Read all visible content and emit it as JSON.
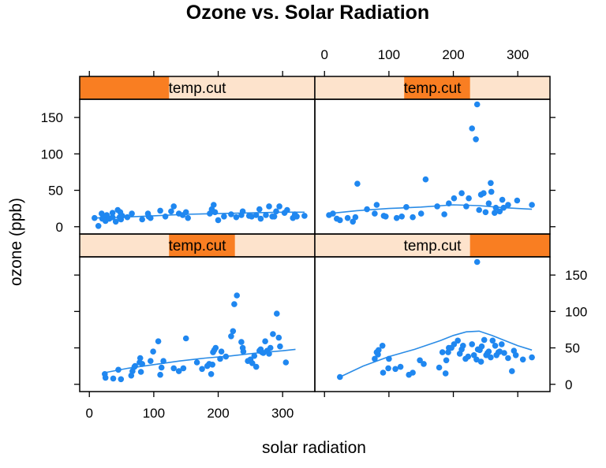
{
  "chart_data": {
    "type": "scatter",
    "title": "Ozone vs. Solar Radiation",
    "xlabel": "solar radiation",
    "ylabel": "ozone (ppb)",
    "xlim": [
      -15,
      350
    ],
    "ylim": [
      -10,
      175
    ],
    "x_ticks": [
      0,
      100,
      200,
      300
    ],
    "y_ticks": [
      0,
      50,
      100,
      150
    ],
    "strip_label": "temp.cut",
    "colors": {
      "points": "#1f87f0",
      "smooth_line": "#2b8ce6",
      "strip_background": "#fde3cc",
      "strip_fill": "#f97e22",
      "frame": "#000000"
    },
    "panels": [
      {
        "id": "bottom-left",
        "strip_range": [
          0.38,
          0.66
        ],
        "points": [
          [
            24,
            14
          ],
          [
            25,
            9
          ],
          [
            37,
            8
          ],
          [
            45,
            20
          ],
          [
            49,
            7
          ],
          [
            65,
            12
          ],
          [
            67,
            18
          ],
          [
            70,
            24
          ],
          [
            71,
            25
          ],
          [
            78,
            30
          ],
          [
            79,
            36
          ],
          [
            80,
            17
          ],
          [
            82,
            28
          ],
          [
            95,
            32
          ],
          [
            99,
            45
          ],
          [
            107,
            59
          ],
          [
            110,
            13
          ],
          [
            112,
            23
          ],
          [
            115,
            32
          ],
          [
            131,
            22
          ],
          [
            139,
            18
          ],
          [
            146,
            22
          ],
          [
            150,
            63
          ],
          [
            167,
            30
          ],
          [
            175,
            21
          ],
          [
            183,
            25
          ],
          [
            186,
            28
          ],
          [
            189,
            14
          ],
          [
            191,
            27
          ],
          [
            192,
            44
          ],
          [
            194,
            47
          ],
          [
            196,
            50
          ],
          [
            203,
            35
          ],
          [
            205,
            45
          ],
          [
            212,
            38
          ],
          [
            220,
            66
          ],
          [
            223,
            73
          ],
          [
            225,
            110
          ],
          [
            229,
            122
          ],
          [
            236,
            58
          ],
          [
            238,
            50
          ],
          [
            239,
            45
          ],
          [
            246,
            32
          ],
          [
            250,
            34
          ],
          [
            253,
            29
          ],
          [
            256,
            39
          ],
          [
            259,
            24
          ],
          [
            264,
            46
          ],
          [
            266,
            48
          ],
          [
            268,
            44
          ],
          [
            270,
            43
          ],
          [
            273,
            59
          ],
          [
            276,
            46
          ],
          [
            279,
            42
          ],
          [
            281,
            50
          ],
          [
            285,
            69
          ],
          [
            291,
            97
          ],
          [
            294,
            64
          ],
          [
            296,
            52
          ],
          [
            305,
            30
          ]
        ],
        "smooth": [
          [
            24,
            16
          ],
          [
            60,
            22
          ],
          [
            100,
            27
          ],
          [
            140,
            32
          ],
          [
            180,
            36
          ],
          [
            220,
            39
          ],
          [
            260,
            43
          ],
          [
            300,
            46
          ],
          [
            320,
            48
          ]
        ]
      },
      {
        "id": "bottom-right",
        "strip_range": [
          0.66,
          1.0
        ],
        "points": [
          [
            24,
            10
          ],
          [
            78,
            35
          ],
          [
            81,
            44
          ],
          [
            83,
            41
          ],
          [
            84,
            47
          ],
          [
            90,
            53
          ],
          [
            91,
            16
          ],
          [
            99,
            22
          ],
          [
            100,
            35
          ],
          [
            110,
            21
          ],
          [
            118,
            24
          ],
          [
            131,
            13
          ],
          [
            137,
            16
          ],
          [
            148,
            33
          ],
          [
            154,
            28
          ],
          [
            178,
            23
          ],
          [
            183,
            44
          ],
          [
            188,
            15
          ],
          [
            189,
            33
          ],
          [
            192,
            44
          ],
          [
            193,
            50
          ],
          [
            197,
            50
          ],
          [
            201,
            55
          ],
          [
            207,
            60
          ],
          [
            210,
            42
          ],
          [
            213,
            48
          ],
          [
            215,
            53
          ],
          [
            219,
            35
          ],
          [
            223,
            38
          ],
          [
            229,
            55
          ],
          [
            232,
            40
          ],
          [
            236,
            34
          ],
          [
            237,
            168
          ],
          [
            238,
            48
          ],
          [
            241,
            47
          ],
          [
            243,
            31
          ],
          [
            244,
            52
          ],
          [
            248,
            61
          ],
          [
            251,
            40
          ],
          [
            253,
            43
          ],
          [
            255,
            45
          ],
          [
            258,
            37
          ],
          [
            261,
            60
          ],
          [
            265,
            53
          ],
          [
            267,
            40
          ],
          [
            270,
            44
          ],
          [
            272,
            45
          ],
          [
            275,
            55
          ],
          [
            279,
            43
          ],
          [
            285,
            36
          ],
          [
            291,
            18
          ],
          [
            294,
            46
          ],
          [
            297,
            40
          ],
          [
            308,
            34
          ],
          [
            322,
            37
          ]
        ],
        "smooth": [
          [
            24,
            10
          ],
          [
            60,
            25
          ],
          [
            100,
            38
          ],
          [
            140,
            48
          ],
          [
            180,
            60
          ],
          [
            200,
            67
          ],
          [
            220,
            72
          ],
          [
            240,
            73
          ],
          [
            260,
            67
          ],
          [
            280,
            60
          ],
          [
            300,
            53
          ],
          [
            322,
            47
          ]
        ]
      },
      {
        "id": "top-left",
        "strip_range": [
          0.0,
          0.38
        ],
        "points": [
          [
            8,
            12
          ],
          [
            14,
            1
          ],
          [
            19,
            18
          ],
          [
            20,
            11
          ],
          [
            24,
            14
          ],
          [
            25,
            8
          ],
          [
            27,
            16
          ],
          [
            31,
            11
          ],
          [
            36,
            13
          ],
          [
            36,
            19
          ],
          [
            41,
            7
          ],
          [
            44,
            23
          ],
          [
            47,
            13
          ],
          [
            48,
            20
          ],
          [
            49,
            10
          ],
          [
            51,
            15
          ],
          [
            59,
            13
          ],
          [
            66,
            18
          ],
          [
            82,
            10
          ],
          [
            91,
            18
          ],
          [
            92,
            14
          ],
          [
            95,
            12
          ],
          [
            110,
            22
          ],
          [
            118,
            14
          ],
          [
            127,
            21
          ],
          [
            131,
            28
          ],
          [
            139,
            18
          ],
          [
            145,
            16
          ],
          [
            150,
            20
          ],
          [
            153,
            12
          ],
          [
            187,
            18
          ],
          [
            190,
            24
          ],
          [
            193,
            30
          ],
          [
            195,
            20
          ],
          [
            200,
            9
          ],
          [
            209,
            14
          ],
          [
            220,
            17
          ],
          [
            228,
            13
          ],
          [
            236,
            16
          ],
          [
            238,
            21
          ],
          [
            248,
            15
          ],
          [
            252,
            14
          ],
          [
            259,
            16
          ],
          [
            264,
            24
          ],
          [
            266,
            11
          ],
          [
            274,
            16
          ],
          [
            279,
            28
          ],
          [
            284,
            14
          ],
          [
            287,
            14
          ],
          [
            290,
            21
          ],
          [
            295,
            28
          ],
          [
            303,
            19
          ],
          [
            307,
            23
          ],
          [
            316,
            12
          ],
          [
            319,
            17
          ],
          [
            322,
            14
          ],
          [
            334,
            15
          ]
        ],
        "smooth": [
          [
            8,
            12
          ],
          [
            50,
            13
          ],
          [
            100,
            15
          ],
          [
            150,
            17
          ],
          [
            200,
            18
          ],
          [
            250,
            19
          ],
          [
            300,
            20
          ],
          [
            334,
            20
          ]
        ]
      },
      {
        "id": "top-right",
        "strip_range": [
          0.38,
          0.66
        ],
        "points": [
          [
            7,
            16
          ],
          [
            13,
            18
          ],
          [
            19,
            11
          ],
          [
            24,
            9
          ],
          [
            36,
            12
          ],
          [
            44,
            7
          ],
          [
            48,
            13
          ],
          [
            51,
            59
          ],
          [
            66,
            24
          ],
          [
            78,
            18
          ],
          [
            81,
            30
          ],
          [
            92,
            15
          ],
          [
            95,
            14
          ],
          [
            112,
            12
          ],
          [
            120,
            14
          ],
          [
            127,
            27
          ],
          [
            137,
            13
          ],
          [
            150,
            18
          ],
          [
            157,
            65
          ],
          [
            175,
            28
          ],
          [
            186,
            17
          ],
          [
            193,
            32
          ],
          [
            201,
            39
          ],
          [
            213,
            46
          ],
          [
            220,
            28
          ],
          [
            224,
            39
          ],
          [
            229,
            135
          ],
          [
            235,
            120
          ],
          [
            237,
            168
          ],
          [
            240,
            23
          ],
          [
            243,
            44
          ],
          [
            247,
            46
          ],
          [
            250,
            20
          ],
          [
            255,
            32
          ],
          [
            258,
            60
          ],
          [
            259,
            48
          ],
          [
            264,
            19
          ],
          [
            266,
            26
          ],
          [
            272,
            21
          ],
          [
            276,
            37
          ],
          [
            278,
            26
          ],
          [
            285,
            30
          ],
          [
            299,
            36
          ],
          [
            322,
            30
          ]
        ],
        "smooth": [
          [
            7,
            18
          ],
          [
            50,
            22
          ],
          [
            100,
            25
          ],
          [
            150,
            27
          ],
          [
            200,
            30
          ],
          [
            240,
            29
          ],
          [
            280,
            26
          ],
          [
            322,
            24
          ]
        ]
      }
    ]
  }
}
